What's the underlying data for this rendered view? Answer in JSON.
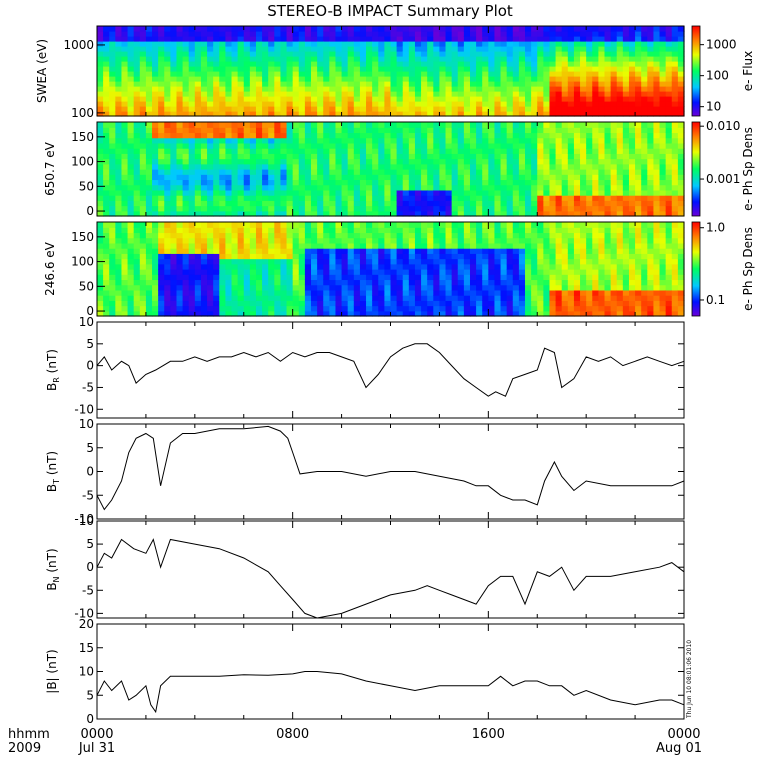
{
  "title": "STEREO-B IMPACT Summary Plot",
  "bottom_left": {
    "format": "hhmm",
    "year": "2009"
  },
  "x_axis": {
    "ticks": [
      "0000",
      "0800",
      "1600",
      "0000"
    ],
    "dates": [
      "Jul 31",
      "Aug 01"
    ],
    "range_hours": [
      0,
      24
    ]
  },
  "timestamp": "Thu Jun 10 08:01:06 2010",
  "colors": {
    "spectrogram_scale": [
      "#6a00d8",
      "#0010ff",
      "#00c8ff",
      "#00ff60",
      "#e8ff00",
      "#ff8000",
      "#ff0000"
    ]
  },
  "chart_data": [
    {
      "type": "heatmap",
      "ylabel": "SWEA (eV)",
      "y_scale": "log",
      "ylim": [
        90,
        1900
      ],
      "yticks": [
        "1000",
        "100"
      ],
      "colorbar": {
        "label": "e- Flux",
        "scale": "log",
        "range": [
          5,
          4000
        ],
        "ticks": [
          "1000",
          "100",
          "10"
        ]
      }
    },
    {
      "type": "heatmap",
      "ylabel": "650.7 eV",
      "ylim": [
        -10,
        180
      ],
      "yticks": [
        "150",
        "100",
        "50",
        "0"
      ],
      "colorbar": {
        "label": "e- Ph Sp Dens",
        "scale": "log",
        "range": [
          0.0002,
          0.012
        ],
        "ticks": [
          "0.010",
          "0.001"
        ]
      }
    },
    {
      "type": "heatmap",
      "ylabel": "246.6 eV",
      "ylim": [
        -10,
        180
      ],
      "yticks": [
        "150",
        "100",
        "50",
        "0"
      ],
      "colorbar": {
        "label": "e- Ph Sp Dens",
        "scale": "log",
        "range": [
          0.06,
          1.2
        ],
        "ticks": [
          "1.0",
          "0.1"
        ]
      }
    },
    {
      "type": "line",
      "ylabel": "B",
      "ylabel_sub": "R",
      "ylabel_unit": "(nT)",
      "ylim": [
        -12,
        10
      ],
      "yticks": [
        "10",
        "5",
        "0",
        "-5",
        "-10"
      ],
      "x": [
        0,
        0.3,
        0.6,
        1,
        1.3,
        1.6,
        2,
        2.4,
        3,
        3.5,
        4,
        4.5,
        5,
        5.5,
        6,
        6.5,
        7,
        7.5,
        8,
        8.5,
        9,
        9.5,
        10,
        10.5,
        11,
        11.5,
        12,
        12.5,
        13,
        13.5,
        14,
        14.5,
        15,
        15.5,
        16,
        16.3,
        16.7,
        17,
        17.5,
        18,
        18.3,
        18.7,
        19,
        19.5,
        20,
        20.5,
        21,
        21.5,
        22,
        22.5,
        23,
        23.5,
        24
      ],
      "y": [
        0,
        2,
        -1,
        1,
        0,
        -4,
        -2,
        -1,
        1,
        1,
        2,
        1,
        2,
        2,
        3,
        2,
        3,
        1,
        3,
        2,
        3,
        3,
        2,
        1,
        -5,
        -2,
        2,
        4,
        5,
        5,
        3,
        0,
        -3,
        -5,
        -7,
        -6,
        -7,
        -3,
        -2,
        -1,
        4,
        3,
        -5,
        -3,
        2,
        1,
        2,
        0,
        1,
        2,
        1,
        0,
        1
      ]
    },
    {
      "type": "line",
      "ylabel": "B",
      "ylabel_sub": "T",
      "ylabel_unit": "(nT)",
      "ylim": [
        -10,
        10
      ],
      "yticks": [
        "10",
        "5",
        "0",
        "-5",
        "-10"
      ],
      "x": [
        0,
        0.3,
        0.6,
        1,
        1.3,
        1.6,
        2,
        2.3,
        2.6,
        3,
        3.5,
        4,
        5,
        6,
        7,
        7.5,
        7.8,
        8,
        8.3,
        9,
        10,
        11,
        12,
        13,
        14,
        15,
        15.5,
        16,
        16.5,
        17,
        17.5,
        18,
        18.3,
        18.7,
        19,
        19.5,
        20,
        21,
        22,
        23,
        23.5,
        24
      ],
      "y": [
        -5,
        -8,
        -6,
        -2,
        4,
        7,
        8,
        7,
        -3,
        6,
        8,
        8,
        9,
        9,
        9.5,
        8.5,
        7,
        4,
        -0.5,
        0,
        0,
        -1,
        0,
        0,
        -1,
        -2,
        -3,
        -3,
        -5,
        -6,
        -6,
        -7,
        -2,
        2,
        -1,
        -4,
        -2,
        -3,
        -3,
        -3,
        -3,
        -2
      ]
    },
    {
      "type": "line",
      "ylabel": "B",
      "ylabel_sub": "N",
      "ylabel_unit": "(nT)",
      "ylim": [
        -11,
        10
      ],
      "yticks": [
        "10",
        "5",
        "0",
        "-5",
        "-10"
      ],
      "x": [
        0,
        0.3,
        0.6,
        1,
        1.5,
        2,
        2.3,
        2.6,
        3,
        4,
        5,
        6,
        7,
        7.5,
        8,
        8.5,
        9,
        10,
        11,
        12,
        13,
        13.5,
        14,
        14.5,
        15,
        15.5,
        16,
        16.5,
        17,
        17.5,
        18,
        18.5,
        19,
        19.5,
        20,
        21,
        22,
        23,
        23.5,
        24
      ],
      "y": [
        0,
        3,
        2,
        6,
        4,
        3,
        6,
        0,
        6,
        5,
        4,
        2,
        -1,
        -4,
        -7,
        -10,
        -11,
        -10,
        -8,
        -6,
        -5,
        -4,
        -5,
        -6,
        -7,
        -8,
        -4,
        -2,
        -2,
        -8,
        -1,
        -2,
        0,
        -5,
        -2,
        -2,
        -1,
        0,
        1,
        -1
      ]
    },
    {
      "type": "line",
      "ylabel": "|B|",
      "ylabel_unit": "(nT)",
      "ylim": [
        0,
        20
      ],
      "yticks": [
        "20",
        "15",
        "10",
        "5",
        "0"
      ],
      "x": [
        0,
        0.3,
        0.6,
        1,
        1.3,
        1.6,
        2,
        2.2,
        2.4,
        2.6,
        3,
        4,
        5,
        6,
        7,
        8,
        8.5,
        9,
        10,
        11,
        12,
        13,
        14,
        15,
        16,
        16.5,
        17,
        17.5,
        18,
        18.5,
        19,
        19.5,
        20,
        21,
        22,
        23,
        23.5,
        24
      ],
      "y": [
        5,
        8,
        6,
        8,
        4,
        5,
        7,
        3,
        1.5,
        7,
        9,
        9,
        9,
        9.3,
        9.2,
        9.5,
        10,
        10,
        9.5,
        8,
        7,
        6,
        7,
        7,
        7,
        9,
        7,
        8,
        8,
        7,
        7,
        5,
        6,
        4,
        3,
        4,
        4,
        3
      ]
    }
  ]
}
